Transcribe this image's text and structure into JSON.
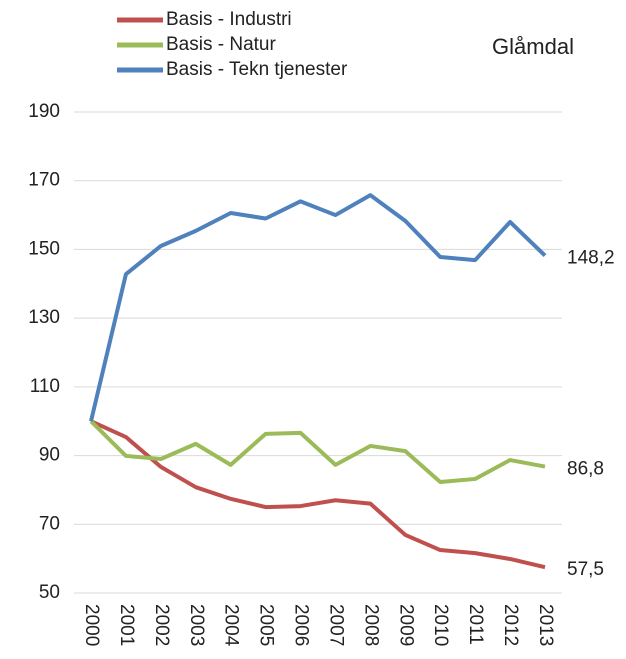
{
  "chart_data": {
    "type": "line",
    "title": "Glåmdal",
    "categories": [
      "2000",
      "2001",
      "2002",
      "2003",
      "2004",
      "2005",
      "2006",
      "2007",
      "2008",
      "2009",
      "2010",
      "2011",
      "2012",
      "2013"
    ],
    "series": [
      {
        "name": "Basis - Industri",
        "color": "#c0504d",
        "values": [
          100,
          95.4,
          86.7,
          80.8,
          77.4,
          75,
          75.3,
          77,
          76,
          66.9,
          62.5,
          61.6,
          59.9,
          57.5
        ],
        "value_labels": [
          null,
          null,
          null,
          null,
          null,
          null,
          null,
          null,
          null,
          null,
          null,
          null,
          null,
          "57,5"
        ]
      },
      {
        "name": "Basis - Natur",
        "color": "#9bbb59",
        "values": [
          100,
          89.9,
          89,
          93.4,
          87.3,
          96.3,
          96.6,
          87.3,
          92.8,
          91.3,
          82.3,
          83.2,
          88.7,
          86.8
        ],
        "value_labels": [
          null,
          null,
          null,
          null,
          null,
          null,
          null,
          null,
          null,
          null,
          null,
          null,
          null,
          "86,8"
        ]
      },
      {
        "name": "Basis - Tekn tjenester",
        "color": "#4f81bd",
        "values": [
          100,
          142.8,
          151,
          155.4,
          160.6,
          159,
          164,
          160,
          165.8,
          158.3,
          147.8,
          146.9,
          158,
          148.2
        ],
        "value_labels": [
          null,
          null,
          null,
          null,
          null,
          null,
          null,
          null,
          null,
          null,
          null,
          null,
          null,
          "148,2"
        ]
      }
    ],
    "ylim": [
      50,
      190
    ],
    "yticks": [
      50,
      70,
      90,
      110,
      130,
      150,
      170,
      190
    ],
    "grid": true
  }
}
